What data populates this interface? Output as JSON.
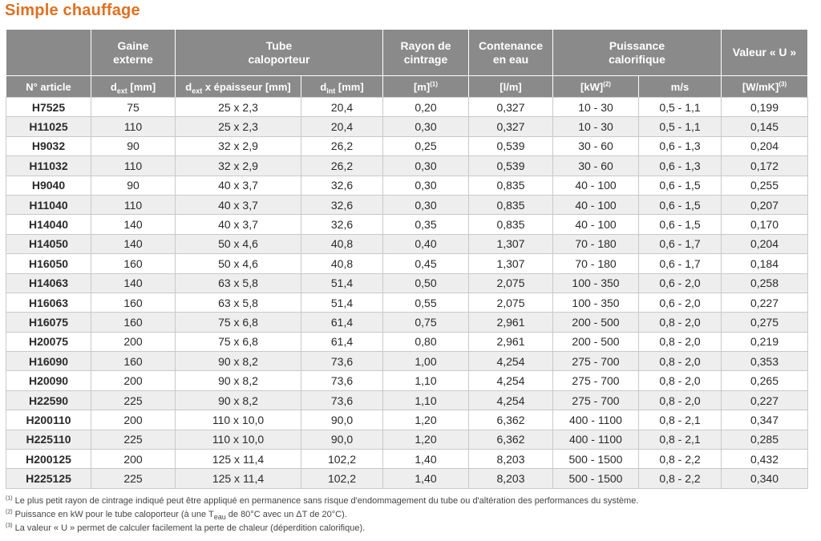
{
  "title": "Simple chauffage",
  "headers_top": {
    "gaine": "Gaine externe",
    "tube": "Tube caloporteur",
    "rayon": "Rayon de cintrage",
    "contenance": "Contenance en eau",
    "puissance": "Puissance calorifique",
    "valeur": "Valeur « U »"
  },
  "headers_sub": {
    "article": "N° article",
    "dext_prefix": "d",
    "dext_sub": "ext",
    "dext_suffix": " [mm]",
    "tube_prefix": "d",
    "tube_sub": "ext",
    "tube_suffix": " x épaisseur [mm]",
    "dint_prefix": "d",
    "dint_sub": "int",
    "dint_suffix": " [mm]",
    "rayon_unit": "[m]",
    "rayon_sup": "(1)",
    "contenance_unit": "[l/m]",
    "puissance_unit": "[kW]",
    "puissance_sup": "(2)",
    "ms_unit": "m/s",
    "valeur_unit": "[W/mK]",
    "valeur_sup": "(3)"
  },
  "rows": [
    [
      "H7525",
      "75",
      "25 x 2,3",
      "20,4",
      "0,20",
      "0,327",
      "10 - 30",
      "0,5 - 1,1",
      "0,199"
    ],
    [
      "H11025",
      "110",
      "25 x 2,3",
      "20,4",
      "0,30",
      "0,327",
      "10 - 30",
      "0,5 - 1,1",
      "0,145"
    ],
    [
      "H9032",
      "90",
      "32 x 2,9",
      "26,2",
      "0,25",
      "0,539",
      "30 - 60",
      "0,6 - 1,3",
      "0,204"
    ],
    [
      "H11032",
      "110",
      "32 x 2,9",
      "26,2",
      "0,30",
      "0,539",
      "30 - 60",
      "0,6 - 1,3",
      "0,172"
    ],
    [
      "H9040",
      "90",
      "40 x 3,7",
      "32,6",
      "0,30",
      "0,835",
      "40 - 100",
      "0,6 - 1,5",
      "0,255"
    ],
    [
      "H11040",
      "110",
      "40 x 3,7",
      "32,6",
      "0,30",
      "0,835",
      "40 - 100",
      "0,6 - 1,5",
      "0,207"
    ],
    [
      "H14040",
      "140",
      "40 x 3,7",
      "32,6",
      "0,35",
      "0,835",
      "40 - 100",
      "0,6 - 1,5",
      "0,170"
    ],
    [
      "H14050",
      "140",
      "50 x 4,6",
      "40,8",
      "0,40",
      "1,307",
      "70 - 180",
      "0,6 - 1,7",
      "0,204"
    ],
    [
      "H16050",
      "160",
      "50 x 4,6",
      "40,8",
      "0,45",
      "1,307",
      "70 - 180",
      "0,6 - 1,7",
      "0,184"
    ],
    [
      "H14063",
      "140",
      "63 x 5,8",
      "51,4",
      "0,50",
      "2,075",
      "100 - 350",
      "0,6 - 2,0",
      "0,258"
    ],
    [
      "H16063",
      "160",
      "63 x 5,8",
      "51,4",
      "0,55",
      "2,075",
      "100 - 350",
      "0,6 - 2,0",
      "0,227"
    ],
    [
      "H16075",
      "160",
      "75 x 6,8",
      "61,4",
      "0,75",
      "2,961",
      "200 - 500",
      "0,8 - 2,0",
      "0,275"
    ],
    [
      "H20075",
      "200",
      "75 x 6,8",
      "61,4",
      "0,80",
      "2,961",
      "200 - 500",
      "0,8 - 2,0",
      "0,219"
    ],
    [
      "H16090",
      "160",
      "90 x 8,2",
      "73,6",
      "1,00",
      "4,254",
      "275 - 700",
      "0,8 - 2,0",
      "0,353"
    ],
    [
      "H20090",
      "200",
      "90 x 8,2",
      "73,6",
      "1,10",
      "4,254",
      "275 - 700",
      "0,8 - 2,0",
      "0,265"
    ],
    [
      "H22590",
      "225",
      "90 x 8,2",
      "73,6",
      "1,10",
      "4,254",
      "275 - 700",
      "0,8 - 2,0",
      "0,227"
    ],
    [
      "H200110",
      "200",
      "110 x 10,0",
      "90,0",
      "1,20",
      "6,362",
      "400 - 1100",
      "0,8 - 2,1",
      "0,347"
    ],
    [
      "H225110",
      "225",
      "110 x 10,0",
      "90,0",
      "1,20",
      "6,362",
      "400 - 1100",
      "0,8 - 2,1",
      "0,285"
    ],
    [
      "H200125",
      "200",
      "125 x 11,4",
      "102,2",
      "1,40",
      "8,203",
      "500 - 1500",
      "0,8 - 2,2",
      "0,432"
    ],
    [
      "H225125",
      "225",
      "125 x 11,4",
      "102,2",
      "1,40",
      "8,203",
      "500 - 1500",
      "0,8 - 2,2",
      "0,340"
    ]
  ],
  "notes": {
    "n1_sup": "(1)",
    "n1": "Le plus petit rayon de cintrage indiqué peut être appliqué en permanence sans risque d'endommagement du tube ou d'altération des performances du système.",
    "n2_sup": "(2)",
    "n2_a": "Puissance en kW pour le tube caloporteur (à une T",
    "n2_sub": "eau",
    "n2_b": " de 80°C avec un ΔT de 20°C).",
    "n3_sup": "(3)",
    "n3": "La valeur « U » permet de calculer facilement la perte de chaleur (déperdition calorifique)."
  },
  "colors": {
    "accent": "#e07020",
    "header_bg": "#8a8a8a",
    "stripe": "#eeeeee"
  }
}
